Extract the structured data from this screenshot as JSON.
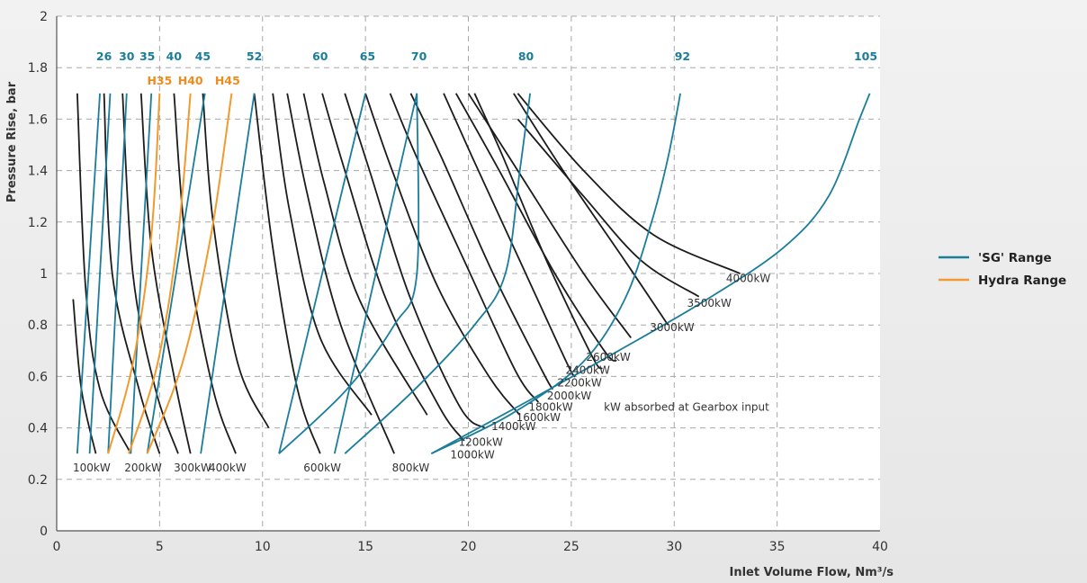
{
  "chart_data": {
    "type": "line",
    "title": "",
    "xlabel": "Inlet Volume Flow, Nm³/s",
    "ylabel": "Pressure Rise, bar",
    "xlim": [
      0,
      40
    ],
    "ylim": [
      0,
      2
    ],
    "x_ticks": [
      0,
      5,
      10,
      15,
      20,
      25,
      30,
      35,
      40
    ],
    "y_ticks": [
      0,
      0.2,
      0.4,
      0.6,
      0.8,
      1,
      1.2,
      1.4,
      1.6,
      1.8,
      2
    ],
    "y_tick_labels": [
      "0",
      "0.2",
      "0.4",
      "0.6",
      "0.8",
      "1",
      "1.2",
      "1.4",
      "1.6",
      "1.8",
      "2"
    ],
    "x_tick_labels": [
      "0",
      "5",
      "10",
      "15",
      "20",
      "25",
      "30",
      "35",
      "40"
    ],
    "grid": "dashed",
    "colors": {
      "sg": "#1a7d9b",
      "hydra": "#f29a2e",
      "power": "#1c1c1c",
      "grid": "#a8a8a8",
      "sg_label": "#1a7d9b",
      "hydra_label": "#ef8c1e"
    },
    "legend": {
      "position": "right",
      "entries": [
        {
          "name": "'SG' Range",
          "color": "#1a7d9b"
        },
        {
          "name": "Hydra Range",
          "color": "#f29a2e"
        }
      ]
    },
    "annotation": "kW absorbed at Gearbox input",
    "sg_models": [
      {
        "name": "26",
        "label_x": 2.3,
        "points": [
          [
            1.0,
            0.3
          ],
          [
            2.1,
            1.7
          ]
        ]
      },
      {
        "name": "30",
        "label_x": 3.4,
        "points": [
          [
            1.6,
            0.3
          ],
          [
            2.6,
            1.7
          ]
        ]
      },
      {
        "name": "35",
        "label_x": 4.4,
        "points": [
          [
            2.5,
            0.3
          ],
          [
            3.4,
            1.7
          ]
        ]
      },
      {
        "name": "40",
        "label_x": 5.7,
        "points": [
          [
            3.6,
            0.3
          ],
          [
            4.6,
            1.7
          ]
        ]
      },
      {
        "name": "45",
        "label_x": 7.1,
        "points": [
          [
            4.4,
            0.3
          ],
          [
            7.2,
            1.7
          ]
        ]
      },
      {
        "name": "52",
        "label_x": 9.6,
        "points": [
          [
            7.0,
            0.3
          ],
          [
            9.6,
            1.7
          ]
        ]
      },
      {
        "name": "60",
        "label_x": 12.8,
        "points": [
          [
            10.8,
            0.3
          ],
          [
            15.0,
            1.7
          ]
        ]
      },
      {
        "name": "65",
        "label_x": 15.1,
        "points": [
          [
            13.5,
            0.3
          ],
          [
            17.5,
            1.7
          ]
        ]
      },
      {
        "name": "70",
        "label_x": 17.6,
        "points": [
          [
            10.8,
            0.3
          ],
          [
            14.1,
            0.55
          ],
          [
            16.4,
            0.8
          ],
          [
            17.5,
            1.0
          ],
          [
            17.5,
            1.7
          ]
        ]
      },
      {
        "name": "80",
        "label_x": 22.8,
        "points": [
          [
            14.0,
            0.3
          ],
          [
            17.4,
            0.55
          ],
          [
            20.3,
            0.8
          ],
          [
            21.8,
            1.0
          ],
          [
            22.5,
            1.4
          ],
          [
            23.0,
            1.7
          ]
        ]
      },
      {
        "name": "92",
        "label_x": 30.4,
        "points": [
          [
            18.2,
            0.3
          ],
          [
            22.0,
            0.45
          ],
          [
            25.5,
            0.65
          ],
          [
            27.6,
            0.9
          ],
          [
            28.9,
            1.2
          ],
          [
            29.7,
            1.45
          ],
          [
            30.3,
            1.7
          ]
        ]
      },
      {
        "name": "105",
        "label_x": 39.3,
        "points": [
          [
            18.2,
            0.3
          ],
          [
            22.8,
            0.5
          ],
          [
            27.3,
            0.7
          ],
          [
            31.6,
            0.9
          ],
          [
            35.3,
            1.1
          ],
          [
            37.5,
            1.3
          ],
          [
            39.0,
            1.6
          ],
          [
            39.5,
            1.7
          ]
        ]
      }
    ],
    "hydra_models": [
      {
        "name": "H35",
        "label_x": 5.0,
        "points": [
          [
            2.5,
            0.3
          ],
          [
            3.7,
            0.65
          ],
          [
            4.6,
            1.15
          ],
          [
            5.0,
            1.7
          ]
        ]
      },
      {
        "name": "H40",
        "label_x": 6.5,
        "points": [
          [
            3.5,
            0.3
          ],
          [
            4.9,
            0.65
          ],
          [
            5.9,
            1.15
          ],
          [
            6.5,
            1.7
          ]
        ]
      },
      {
        "name": "H45",
        "label_x": 8.3,
        "points": [
          [
            4.4,
            0.3
          ],
          [
            6.1,
            0.65
          ],
          [
            7.5,
            1.15
          ],
          [
            8.5,
            1.7
          ]
        ]
      }
    ],
    "power_curves": [
      {
        "name": "100kW",
        "label_xy": [
          1.7,
          0.245
        ],
        "points": [
          [
            0.8,
            0.9
          ],
          [
            1.2,
            0.55
          ],
          [
            1.9,
            0.3
          ]
        ]
      },
      {
        "name": "",
        "label_xy": null,
        "points": [
          [
            1.0,
            1.7
          ],
          [
            1.4,
            0.95
          ],
          [
            2.1,
            0.55
          ],
          [
            3.6,
            0.3
          ]
        ]
      },
      {
        "name": "200kW",
        "label_xy": [
          4.2,
          0.245
        ],
        "points": [
          [
            2.3,
            1.7
          ],
          [
            2.7,
            1.0
          ],
          [
            4.0,
            0.55
          ],
          [
            5.0,
            0.3
          ]
        ]
      },
      {
        "name": "",
        "label_xy": null,
        "points": [
          [
            3.2,
            1.7
          ],
          [
            3.7,
            1.0
          ],
          [
            4.8,
            0.55
          ],
          [
            5.9,
            0.3
          ]
        ]
      },
      {
        "name": "300kW",
        "label_xy": [
          6.6,
          0.245
        ],
        "points": [
          [
            4.1,
            1.7
          ],
          [
            4.6,
            1.1
          ],
          [
            5.7,
            0.6
          ],
          [
            6.5,
            0.3
          ]
        ]
      },
      {
        "name": "400kW",
        "label_xy": [
          8.3,
          0.245
        ],
        "points": [
          [
            5.7,
            1.7
          ],
          [
            6.3,
            1.1
          ],
          [
            7.6,
            0.55
          ],
          [
            8.7,
            0.3
          ]
        ]
      },
      {
        "name": "",
        "label_xy": null,
        "points": [
          [
            7.1,
            1.7
          ],
          [
            7.6,
            1.2
          ],
          [
            8.8,
            0.65
          ],
          [
            10.3,
            0.4
          ]
        ]
      },
      {
        "name": "600kW",
        "label_xy": [
          12.9,
          0.245
        ],
        "points": [
          [
            9.6,
            1.7
          ],
          [
            10.5,
            1.1
          ],
          [
            11.7,
            0.55
          ],
          [
            12.8,
            0.3
          ]
        ]
      },
      {
        "name": "",
        "label_xy": null,
        "points": [
          [
            10.5,
            1.7
          ],
          [
            11.3,
            1.25
          ],
          [
            12.8,
            0.75
          ],
          [
            15.3,
            0.45
          ]
        ]
      },
      {
        "name": "800kW",
        "label_xy": [
          17.2,
          0.245
        ],
        "points": [
          [
            11.2,
            1.7
          ],
          [
            12.2,
            1.3
          ],
          [
            13.8,
            0.8
          ],
          [
            16.4,
            0.3
          ]
        ]
      },
      {
        "name": "",
        "label_xy": null,
        "points": [
          [
            12.0,
            1.7
          ],
          [
            13.0,
            1.35
          ],
          [
            14.7,
            0.9
          ],
          [
            18.0,
            0.45
          ]
        ]
      },
      {
        "name": "1000kW",
        "label_xy": [
          20.2,
          0.295
        ],
        "points": [
          [
            12.9,
            1.7
          ],
          [
            14.0,
            1.4
          ],
          [
            16.0,
            0.9
          ],
          [
            18.6,
            0.48
          ],
          [
            19.8,
            0.35
          ]
        ]
      },
      {
        "name": "1200kW",
        "label_xy": [
          20.6,
          0.345
        ],
        "points": [
          [
            14.0,
            1.7
          ],
          [
            15.2,
            1.4
          ],
          [
            17.2,
            0.9
          ],
          [
            19.6,
            0.48
          ],
          [
            20.8,
            0.4
          ]
        ]
      },
      {
        "name": "1400kW",
        "label_xy": [
          22.2,
          0.405
        ],
        "points": [
          [
            15.0,
            1.7
          ],
          [
            16.3,
            1.4
          ],
          [
            18.5,
            0.95
          ],
          [
            21.0,
            0.6
          ],
          [
            22.5,
            0.45
          ]
        ]
      },
      {
        "name": "1600kW",
        "label_xy": [
          23.4,
          0.44
        ],
        "points": [
          [
            16.2,
            1.7
          ],
          [
            17.5,
            1.45
          ],
          [
            19.8,
            1.05
          ],
          [
            22.3,
            0.62
          ],
          [
            23.4,
            0.5
          ]
        ]
      },
      {
        "name": "1800kW",
        "label_xy": [
          24.0,
          0.48
        ],
        "points": [
          [
            17.2,
            1.7
          ],
          [
            18.7,
            1.45
          ],
          [
            21.2,
            1.0
          ],
          [
            23.6,
            0.62
          ],
          [
            24.1,
            0.55
          ]
        ]
      },
      {
        "name": "2000kW",
        "label_xy": [
          24.9,
          0.525
        ],
        "points": [
          [
            18.8,
            1.7
          ],
          [
            20.2,
            1.45
          ],
          [
            22.5,
            1.05
          ],
          [
            24.8,
            0.65
          ],
          [
            25.2,
            0.6
          ]
        ]
      },
      {
        "name": "2200kW",
        "label_xy": [
          25.4,
          0.575
        ],
        "points": [
          [
            20.3,
            1.7
          ],
          [
            21.7,
            1.45
          ],
          [
            23.8,
            1.05
          ],
          [
            26.0,
            0.68
          ],
          [
            26.5,
            0.63
          ]
        ]
      },
      {
        "name": "2400kW",
        "label_xy": [
          25.8,
          0.625
        ],
        "points": [
          [
            19.4,
            1.7
          ],
          [
            21.5,
            1.4
          ],
          [
            24.2,
            1.0
          ],
          [
            26.6,
            0.7
          ],
          [
            27.2,
            0.66
          ]
        ]
      },
      {
        "name": "2600kW",
        "label_xy": [
          26.8,
          0.675
        ],
        "points": [
          [
            20.0,
            1.7
          ],
          [
            22.4,
            1.4
          ],
          [
            25.6,
            1.0
          ],
          [
            27.9,
            0.75
          ]
        ]
      },
      {
        "name": "3000kW",
        "label_xy": [
          29.9,
          0.79
        ],
        "points": [
          [
            22.2,
            1.7
          ],
          [
            24.6,
            1.4
          ],
          [
            27.6,
            1.05
          ],
          [
            29.7,
            0.8
          ]
        ]
      },
      {
        "name": "3500kW",
        "label_xy": [
          31.7,
          0.885
        ],
        "points": [
          [
            22.4,
            1.6
          ],
          [
            25.6,
            1.3
          ],
          [
            28.4,
            1.05
          ],
          [
            31.2,
            0.91
          ]
        ]
      },
      {
        "name": "4000kW",
        "label_xy": [
          33.6,
          0.98
        ],
        "points": [
          [
            22.4,
            1.7
          ],
          [
            25.6,
            1.4
          ],
          [
            29.0,
            1.15
          ],
          [
            33.2,
            1.0
          ]
        ]
      }
    ]
  }
}
